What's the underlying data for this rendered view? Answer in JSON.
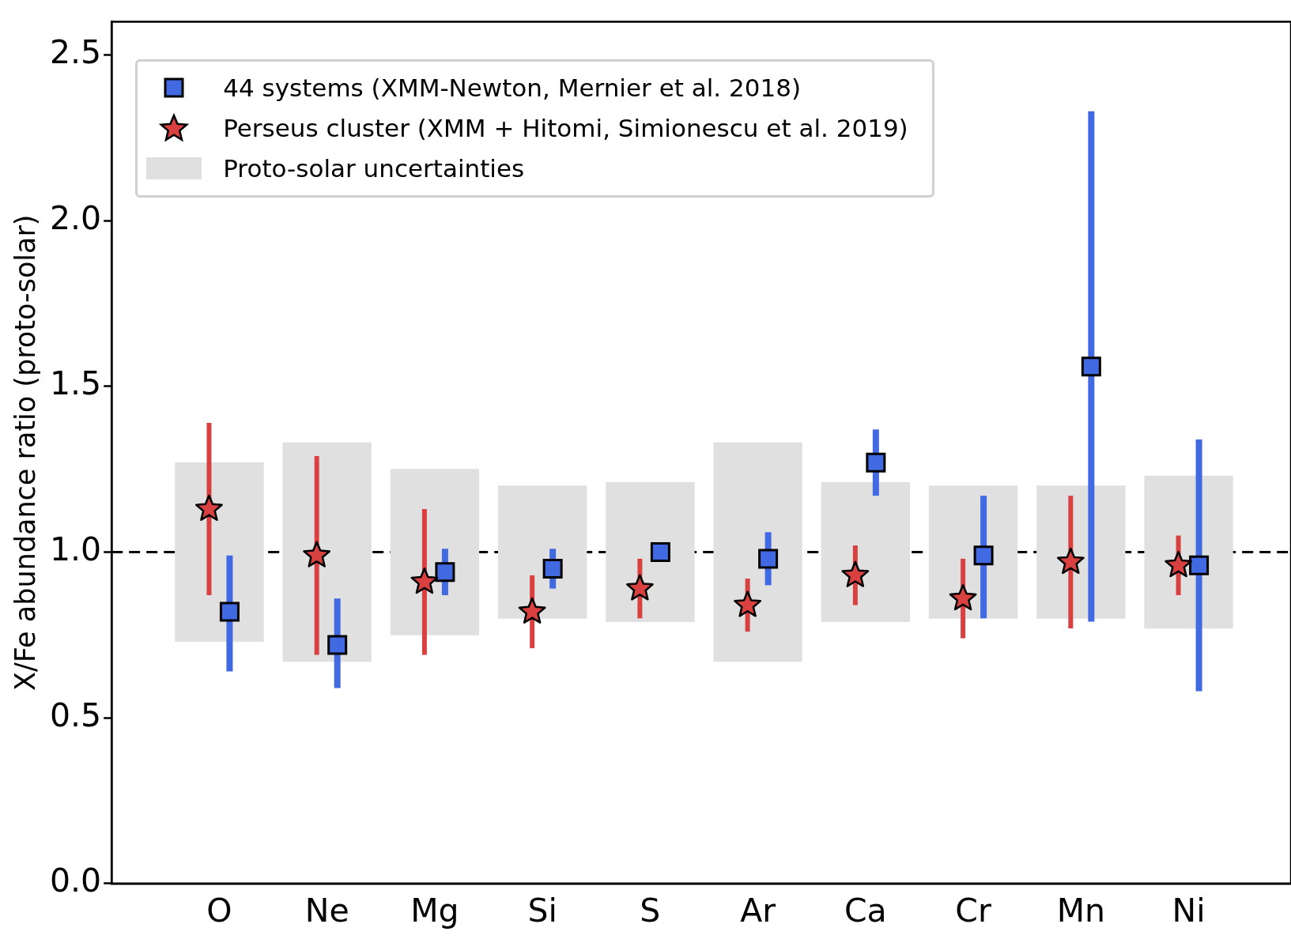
{
  "chart_data": {
    "type": "scatter",
    "ylabel": "X/Fe abundance ratio (proto-solar)",
    "categories": [
      "O",
      "Ne",
      "Mg",
      "Si",
      "S",
      "Ar",
      "Ca",
      "Cr",
      "Mn",
      "Ni"
    ],
    "ylim": [
      0,
      2.6
    ],
    "yticks": [
      {
        "value": 0,
        "label": "0.0"
      },
      0.5,
      {
        "value": 1,
        "label": "1.0"
      },
      1.5,
      {
        "value": 2,
        "label": "2.0"
      },
      2.5
    ],
    "legend": "top left",
    "grid": false,
    "ref_lines": [
      {
        "axis": "y",
        "value": 1,
        "color": "#000000",
        "line_style": "dashed"
      }
    ],
    "series": [
      {
        "name": "44 systems (XMM-Newton, Mernier et al. 2018)",
        "color": "#4169e1",
        "marker": "square",
        "values": [
          0.82,
          0.72,
          0.94,
          0.95,
          1.0,
          0.98,
          1.27,
          0.99,
          1.56,
          0.96
        ],
        "errors": [
          [
            0.64,
            0.99
          ],
          [
            0.59,
            0.86
          ],
          [
            0.87,
            1.01
          ],
          [
            0.89,
            1.01
          ],
          null,
          [
            0.9,
            1.06
          ],
          [
            1.17,
            1.37
          ],
          [
            0.8,
            1.17
          ],
          [
            0.79,
            2.33
          ],
          [
            0.58,
            1.34
          ]
        ]
      },
      {
        "name": "Perseus cluster (XMM + Hitomi, Simionescu et al. 2019)",
        "color": "#d94040",
        "marker": "star",
        "values": [
          1.13,
          0.99,
          0.91,
          0.82,
          0.89,
          0.84,
          0.93,
          0.86,
          0.97,
          0.96
        ],
        "errors": [
          [
            0.87,
            1.39
          ],
          [
            0.69,
            1.29
          ],
          [
            0.69,
            1.13
          ],
          [
            0.71,
            0.93
          ],
          [
            0.8,
            0.98
          ],
          [
            0.76,
            0.92
          ],
          [
            0.84,
            1.02
          ],
          [
            0.74,
            0.98
          ],
          [
            0.77,
            1.17
          ],
          [
            0.87,
            1.05
          ]
        ]
      },
      {
        "type": "bar",
        "name": "Proto-solar uncertainties",
        "color": "#e0e0e0",
        "base": [
          0.73,
          0.67,
          0.75,
          0.8,
          0.79,
          0.67,
          0.79,
          0.8,
          0.8,
          0.77
        ],
        "values": [
          0.54,
          0.66,
          0.5,
          0.4,
          0.42,
          0.66,
          0.42,
          0.4,
          0.4,
          0.46
        ]
      }
    ]
  }
}
